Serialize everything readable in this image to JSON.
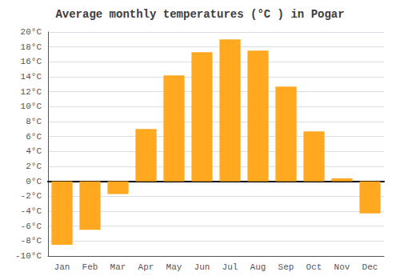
{
  "chart_data": {
    "type": "bar",
    "title": "Average monthly temperatures (°C ) in Pogar",
    "categories": [
      "Jan",
      "Feb",
      "Mar",
      "Apr",
      "May",
      "Jun",
      "Jul",
      "Aug",
      "Sep",
      "Oct",
      "Nov",
      "Dec"
    ],
    "values": [
      -8.5,
      -6.5,
      -1.7,
      7.0,
      14.2,
      17.3,
      19.0,
      17.5,
      12.7,
      6.7,
      0.4,
      -4.3
    ],
    "color": "#FFA820",
    "ylim": [
      -10,
      20
    ],
    "yticks": [
      {
        "value": -10,
        "label": "-10°C"
      },
      {
        "value": -8,
        "label": "-8°C"
      },
      {
        "value": -6,
        "label": "-6°C"
      },
      {
        "value": -4,
        "label": "-4°C"
      },
      {
        "value": -2,
        "label": "-2°C"
      },
      {
        "value": 0,
        "label": "0°C"
      },
      {
        "value": 2,
        "label": "2°C"
      },
      {
        "value": 4,
        "label": "4°C"
      },
      {
        "value": 6,
        "label": "6°C"
      },
      {
        "value": 8,
        "label": "8°C"
      },
      {
        "value": 10,
        "label": "10°C"
      },
      {
        "value": 12,
        "label": "12°C"
      },
      {
        "value": 14,
        "label": "14°C"
      },
      {
        "value": 16,
        "label": "16°C"
      },
      {
        "value": 18,
        "label": "18°C"
      },
      {
        "value": 20,
        "label": "20°C"
      }
    ],
    "grid": true
  }
}
